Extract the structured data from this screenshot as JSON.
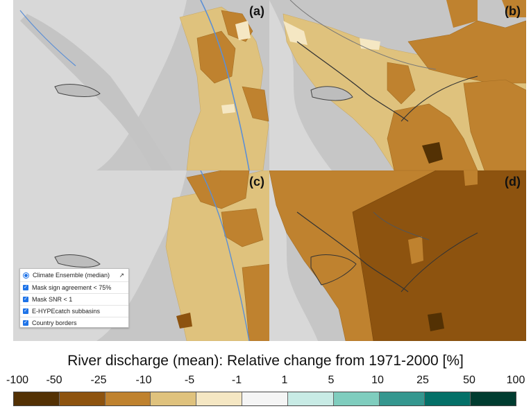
{
  "panels": [
    {
      "label": "(a)"
    },
    {
      "label": "(b)"
    },
    {
      "label": "(c)"
    },
    {
      "label": "(d)"
    }
  ],
  "layer_control": {
    "ensemble_label": "Climate Ensemble (median)",
    "options": [
      {
        "label": "Mask sign agreement < 75%",
        "checked": true
      },
      {
        "label": "Mask SNR < 1",
        "checked": true
      },
      {
        "label": "E-HYPEcatch subbasins",
        "checked": true
      },
      {
        "label": "Country borders",
        "checked": true
      }
    ]
  },
  "legend": {
    "title": "River discharge (mean): Relative change from 1971-2000 [%]",
    "ticks": [
      "-100",
      "-50",
      "-25",
      "-10",
      "-5",
      "-1",
      "1",
      "5",
      "10",
      "25",
      "50",
      "100"
    ],
    "colors": [
      "#533104",
      "#8d530f",
      "#bf822f",
      "#dfc27d",
      "#f5e7c3",
      "#f5f5f5",
      "#c8ebe5",
      "#7fcdbe",
      "#35978f",
      "#047068",
      "#003c30"
    ]
  },
  "colors": {
    "land_gray": "#c7c7c7",
    "sea": "#d7d7d7",
    "river": "#5b8fd6",
    "border": "#333333"
  }
}
